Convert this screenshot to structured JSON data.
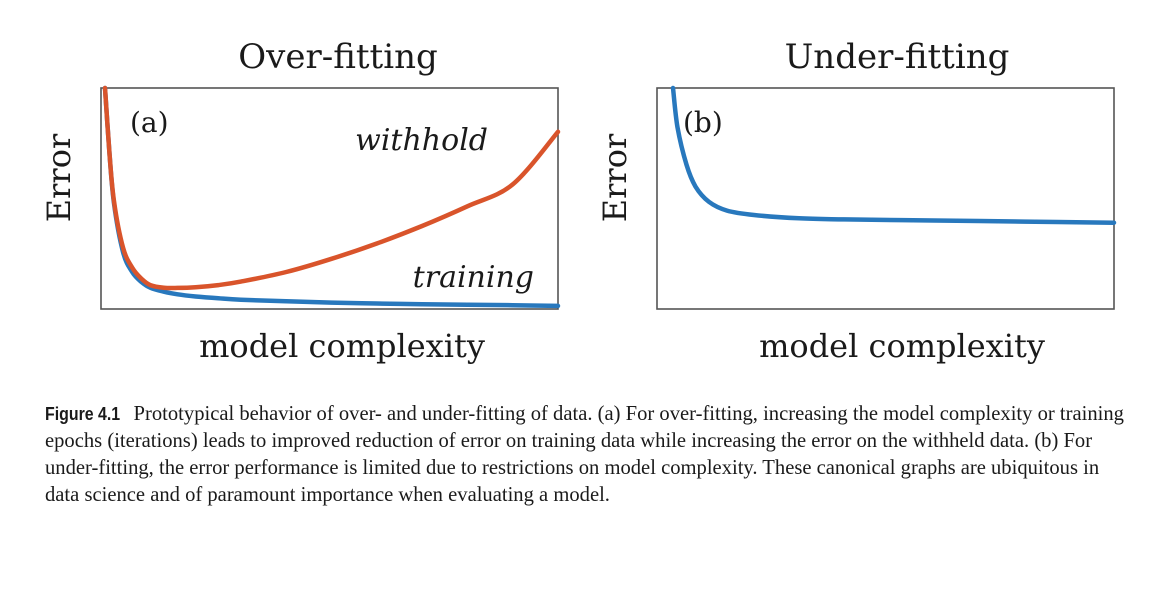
{
  "chart_data": [
    {
      "type": "line",
      "title": "Over-fitting",
      "panel_label": "(a)",
      "xlabel": "model complexity",
      "ylabel": "Error",
      "grid": false,
      "xlim": [
        0,
        1
      ],
      "ylim": [
        0,
        1
      ],
      "series": [
        {
          "name": "withhold",
          "color": "#d9542b",
          "x": [
            0.0,
            0.01,
            0.02,
            0.04,
            0.06,
            0.08,
            0.1,
            0.13,
            0.16,
            0.2,
            0.25,
            0.3,
            0.4,
            0.5,
            0.6,
            0.7,
            0.8,
            0.9,
            1.0
          ],
          "y": [
            1.0,
            0.7,
            0.48,
            0.27,
            0.18,
            0.13,
            0.1,
            0.088,
            0.087,
            0.09,
            0.1,
            0.116,
            0.16,
            0.22,
            0.29,
            0.37,
            0.46,
            0.56,
            0.8
          ]
        },
        {
          "name": "training",
          "color": "#2878bd",
          "x": [
            0.0,
            0.01,
            0.02,
            0.04,
            0.06,
            0.08,
            0.1,
            0.13,
            0.16,
            0.2,
            0.25,
            0.3,
            0.4,
            0.5,
            0.6,
            0.7,
            0.8,
            0.9,
            1.0
          ],
          "y": [
            1.0,
            0.7,
            0.47,
            0.25,
            0.16,
            0.115,
            0.088,
            0.07,
            0.058,
            0.048,
            0.04,
            0.033,
            0.026,
            0.02,
            0.016,
            0.013,
            0.01,
            0.008,
            0.005
          ]
        }
      ]
    },
    {
      "type": "line",
      "title": "Under-fitting",
      "panel_label": "(b)",
      "xlabel": "model complexity",
      "ylabel": "Error",
      "grid": false,
      "xlim": [
        0,
        1
      ],
      "ylim": [
        0,
        1
      ],
      "series": [
        {
          "color": "#2878bd",
          "x": [
            0.02,
            0.03,
            0.05,
            0.07,
            0.1,
            0.14,
            0.2,
            0.3,
            0.4,
            0.6,
            0.8,
            1.0
          ],
          "y": [
            1.0,
            0.82,
            0.65,
            0.55,
            0.48,
            0.44,
            0.42,
            0.405,
            0.4,
            0.395,
            0.39,
            0.385
          ]
        }
      ]
    }
  ],
  "caption": {
    "label": "Figure 4.1",
    "text": "Prototypical behavior of over- and under-fitting of data. (a) For over-fitting, increasing the model complexity or training epochs (iterations) leads to improved reduction of error on training data while increasing the error on the withheld data. (b) For under-fitting, the error performance is limited due to restrictions on model complexity. These canonical graphs are ubiquitous in data science and of paramount importance when evaluating a model."
  }
}
